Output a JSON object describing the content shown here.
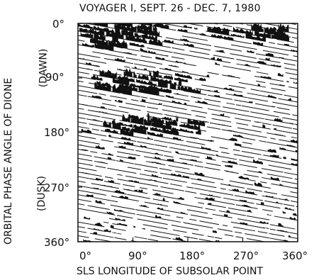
{
  "chart_data": {
    "type": "heatmap",
    "title": "VOYAGER I,  SEPT. 26 - DEC. 7, 1980",
    "xlabel": "SLS LONGITUDE OF SUBSOLAR POINT",
    "ylabel": "ORBITAL PHASE ANGLE OF DIONE",
    "ylabel_annotations": [
      "(DAWN)",
      "(DUSK)"
    ],
    "xlim": [
      0,
      360
    ],
    "ylim": [
      0,
      360
    ],
    "y_inverted": true,
    "xticks": [
      "0°",
      "90°",
      "180°",
      "270°",
      "360°"
    ],
    "yticks": [
      "0°",
      "90°",
      "180°",
      "270°",
      "360°"
    ],
    "colors": {
      "ink": "#111111",
      "background": "#ffffff"
    },
    "band_slope_deg_phase_per_deg_longitude": 0.18,
    "dense_regions": [
      {
        "x": [
          0,
          130
        ],
        "y": [
          0,
          40
        ]
      },
      {
        "x": [
          20,
          170
        ],
        "y": [
          85,
          115
        ]
      },
      {
        "x": [
          40,
          200
        ],
        "y": [
          160,
          185
        ]
      },
      {
        "x": [
          200,
          330
        ],
        "y": [
          10,
          25
        ]
      }
    ]
  }
}
